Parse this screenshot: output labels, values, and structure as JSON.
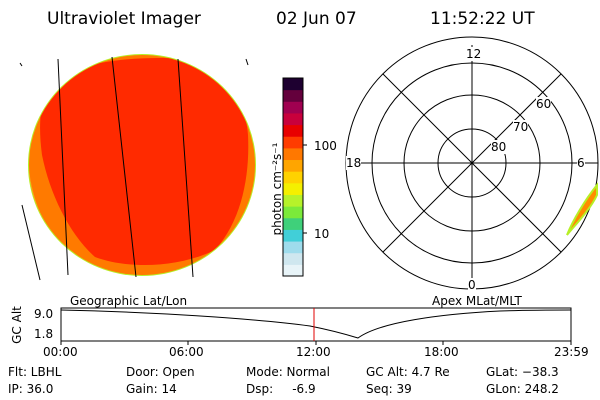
{
  "header": {
    "title": "Ultraviolet Imager",
    "date": "02 Jun 07",
    "time": "11:52:22 UT"
  },
  "colorbar": {
    "unit_label": "photon cm⁻²s⁻¹",
    "ticks": [
      "100",
      "10"
    ],
    "colors": [
      "#e8f4f8",
      "#cfe7ef",
      "#9fdcec",
      "#41cfd8",
      "#3fd07a",
      "#7bea3a",
      "#b6f22a",
      "#f4f000",
      "#ffd200",
      "#ffa500",
      "#ff7800",
      "#ff3c00",
      "#e80000",
      "#c8003c",
      "#a00050",
      "#64003c",
      "#1e0030"
    ]
  },
  "left_panel": {
    "label": "Geographic Lat/Lon",
    "colors": {
      "dark": "#ff2a00",
      "mid": "#ff7a00",
      "light": "#ffa51a",
      "rim": "#b7ef26"
    }
  },
  "right_panel": {
    "label": "Apex MLat/MLT",
    "mlt_labels": {
      "top": "12",
      "left": "18",
      "right": "6",
      "bottom": "0"
    },
    "lat_labels": [
      "60",
      "70",
      "80"
    ]
  },
  "altitude_plot": {
    "ylabel": "GC Alt",
    "yticks": [
      "9.0",
      "1.8"
    ],
    "xticks": [
      "00:00",
      "06:00",
      "12:00",
      "18:00",
      "23:59"
    ],
    "marker_color": "#e00000",
    "current_time": "11:52:22"
  },
  "info": {
    "flt": "Flt: LBHL",
    "door": "Door: Open",
    "mode": "Mode: Normal",
    "gc_alt": "GC Alt: 4.7 Re",
    "glat": "GLat: −38.3",
    "ip": "IP: 36.0",
    "gain": "Gain: 14",
    "dsp": "Dsp:     -6.9",
    "seq": "Seq: 39",
    "glon": "GLon: 248.2"
  }
}
